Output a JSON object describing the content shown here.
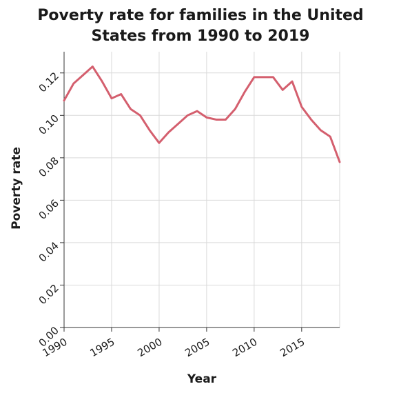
{
  "chart_data": {
    "type": "line",
    "title_lines": [
      "Poverty rate for families in the United",
      "States from 1990 to 2019"
    ],
    "xlabel": "Year",
    "ylabel": "Poverty rate",
    "xlim": [
      1990,
      2019
    ],
    "ylim": [
      0,
      0.13
    ],
    "x_ticks": [
      1990,
      1995,
      2000,
      2005,
      2010,
      2015
    ],
    "x_tick_labels": [
      "1990",
      "1995",
      "2000",
      "2005",
      "2010",
      "2015"
    ],
    "y_ticks": [
      0,
      0.02,
      0.04,
      0.06,
      0.08,
      0.1,
      0.12
    ],
    "y_tick_labels": [
      "0.00",
      "0.02",
      "0.04",
      "0.06",
      "0.08",
      "0.10",
      "0.12"
    ],
    "grid": true,
    "legend": "none",
    "series": [
      {
        "color": "#d45f6e",
        "x": [
          1990,
          1991,
          1992,
          1993,
          1994,
          1995,
          1996,
          1997,
          1998,
          1999,
          2000,
          2001,
          2002,
          2003,
          2004,
          2005,
          2006,
          2007,
          2008,
          2009,
          2010,
          2011,
          2012,
          2013,
          2014,
          2015,
          2016,
          2017,
          2018,
          2019
        ],
        "values": [
          0.107,
          0.115,
          0.119,
          0.123,
          0.116,
          0.108,
          0.11,
          0.103,
          0.1,
          0.093,
          0.087,
          0.092,
          0.096,
          0.1,
          0.102,
          0.099,
          0.098,
          0.098,
          0.103,
          0.111,
          0.118,
          0.118,
          0.118,
          0.112,
          0.116,
          0.104,
          0.098,
          0.093,
          0.09,
          0.078
        ]
      }
    ]
  }
}
